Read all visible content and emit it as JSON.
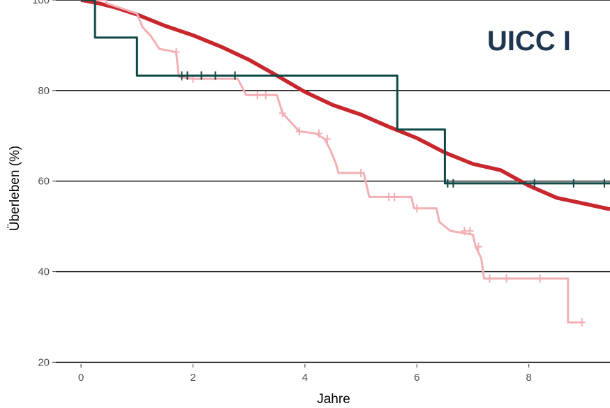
{
  "chart_data": {
    "type": "line",
    "subtype": "kaplan-meier step curves",
    "annotation": "UICC I",
    "xlabel": "Jahre",
    "ylabel": "Überleben (%)",
    "xlim": [
      -0.45,
      9.45
    ],
    "ylim": [
      19.6,
      100
    ],
    "x_ticks": [
      0,
      2,
      4,
      6,
      8
    ],
    "y_ticks": [
      20,
      40,
      60,
      80,
      100
    ],
    "grid": "horizontal major lines",
    "legend": "none",
    "series": [
      {
        "color": "#c8272d",
        "points": [
          [
            0,
            100
          ],
          [
            0.3,
            99.3
          ],
          [
            0.6,
            98.4
          ],
          [
            1.0,
            96.8
          ],
          [
            1.5,
            94.3
          ],
          [
            2.0,
            92.2
          ],
          [
            2.5,
            89.7
          ],
          [
            3.0,
            86.8
          ],
          [
            3.5,
            83.3
          ],
          [
            4.0,
            79.7
          ],
          [
            4.5,
            76.8
          ],
          [
            5.0,
            74.7
          ],
          [
            5.5,
            72.0
          ],
          [
            6.0,
            69.5
          ],
          [
            6.5,
            66.3
          ],
          [
            7.0,
            63.8
          ],
          [
            7.5,
            62.4
          ],
          [
            8.0,
            59.0
          ],
          [
            8.5,
            56.3
          ],
          [
            9.0,
            55.0
          ],
          [
            9.45,
            53.8
          ]
        ],
        "censor": []
      },
      {
        "color": "#f2afb4",
        "points": [
          [
            0,
            100
          ],
          [
            0.45,
            100
          ],
          [
            0.45,
            99.3
          ],
          [
            1.0,
            97.0
          ],
          [
            1.1,
            94.0
          ],
          [
            1.25,
            92.0
          ],
          [
            1.4,
            89.2
          ],
          [
            1.7,
            88.5
          ],
          [
            1.75,
            83.0
          ],
          [
            2.0,
            82.6
          ],
          [
            2.8,
            82.6
          ],
          [
            2.95,
            79.0
          ],
          [
            3.5,
            79.0
          ],
          [
            3.55,
            77.0
          ],
          [
            3.6,
            75.0
          ],
          [
            3.75,
            73.0
          ],
          [
            3.9,
            71.0
          ],
          [
            4.2,
            70.5
          ],
          [
            4.35,
            69.3
          ],
          [
            4.45,
            67.0
          ],
          [
            4.55,
            64.0
          ],
          [
            4.6,
            61.8
          ],
          [
            5.05,
            61.8
          ],
          [
            5.15,
            56.5
          ],
          [
            5.9,
            56.5
          ],
          [
            5.95,
            54.0
          ],
          [
            6.35,
            54.0
          ],
          [
            6.4,
            51.0
          ],
          [
            6.6,
            49.0
          ],
          [
            7.0,
            48.2
          ],
          [
            7.05,
            45.5
          ],
          [
            7.15,
            43.0
          ],
          [
            7.2,
            38.5
          ],
          [
            8.7,
            38.5
          ],
          [
            8.7,
            28.8
          ],
          [
            8.95,
            28.8
          ]
        ],
        "censor": [
          [
            1.7,
            88.5
          ],
          [
            1.8,
            83.0
          ],
          [
            2.0,
            82.6
          ],
          [
            3.15,
            79.0
          ],
          [
            3.3,
            79.0
          ],
          [
            3.6,
            75.0
          ],
          [
            3.9,
            71.0
          ],
          [
            4.25,
            70.5
          ],
          [
            4.4,
            69.3
          ],
          [
            5.0,
            61.8
          ],
          [
            5.5,
            56.5
          ],
          [
            5.6,
            56.5
          ],
          [
            6.0,
            54.0
          ],
          [
            6.85,
            49.0
          ],
          [
            6.95,
            49.0
          ],
          [
            7.1,
            45.5
          ],
          [
            7.3,
            38.5
          ],
          [
            7.6,
            38.5
          ],
          [
            8.2,
            38.5
          ],
          [
            8.95,
            28.8
          ]
        ]
      },
      {
        "color": "#0d4845",
        "points": [
          [
            0,
            100
          ],
          [
            0.25,
            100
          ],
          [
            0.25,
            91.7
          ],
          [
            1.0,
            91.7
          ],
          [
            1.0,
            83.3
          ],
          [
            5.65,
            83.3
          ],
          [
            5.65,
            71.4
          ],
          [
            6.5,
            71.4
          ],
          [
            6.5,
            59.5
          ],
          [
            9.45,
            59.5
          ]
        ],
        "censor": [
          [
            1.8,
            83.3
          ],
          [
            1.9,
            83.3
          ],
          [
            2.15,
            83.3
          ],
          [
            2.4,
            83.3
          ],
          [
            2.75,
            83.3
          ],
          [
            6.55,
            59.5
          ],
          [
            6.65,
            59.5
          ],
          [
            8.1,
            59.5
          ],
          [
            8.8,
            59.5
          ],
          [
            9.35,
            59.5
          ]
        ]
      }
    ]
  }
}
